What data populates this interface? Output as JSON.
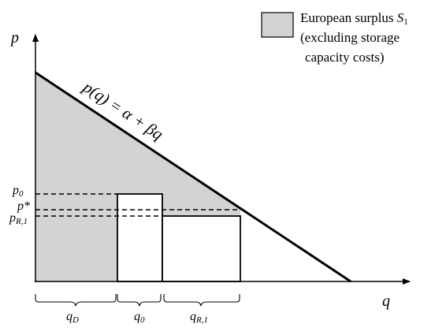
{
  "colors": {
    "surplus_fill": "#d3d3d3",
    "stroke": "#000000",
    "background": "#ffffff"
  },
  "legend": {
    "line1_prefix": "European surplus ",
    "line1_symbol": "S",
    "line1_symbol_sub": "1",
    "line2": "(excluding storage",
    "line3": "capacity costs)"
  },
  "axes": {
    "y_label": "p",
    "x_label": "q"
  },
  "demand_label": {
    "text": "p(q) = α + βq"
  },
  "price_labels": {
    "p0": {
      "main": "p",
      "sub": "0"
    },
    "pstar": {
      "main": "p*"
    },
    "pR1": {
      "main": "p",
      "sub": "R,1"
    }
  },
  "quantity_labels": {
    "qD": {
      "main": "q",
      "sub": "D"
    },
    "q0": {
      "main": "q",
      "sub": "0"
    },
    "qR1": {
      "main": "q",
      "sub": "R,1"
    }
  }
}
